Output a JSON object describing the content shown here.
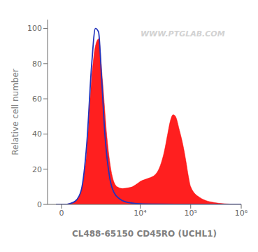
{
  "chart_data": {
    "type": "area",
    "xlabel": "CL488-65150 CD45RO (UCHL1)",
    "ylabel": "Relative cell number",
    "annotations": [
      "WWW.PTGLAB.COM"
    ],
    "log": "x",
    "series": [
      {
        "type": "area",
        "color": "#ff0000",
        "x": [
          -200,
          0,
          100,
          300,
          500,
          700,
          900,
          1100,
          1300,
          1500,
          1800,
          2200,
          2800,
          3500,
          4500,
          6000,
          7000,
          8000,
          9000,
          10000,
          12000,
          15000,
          20000,
          25000,
          30000,
          35000,
          40000,
          45000,
          50000,
          60000,
          70000,
          80000,
          90000,
          100000,
          150000,
          300000,
          600000,
          1000000
        ],
        "values": [
          0,
          0,
          0,
          0.5,
          2,
          8,
          30,
          72,
          90,
          94,
          70,
          38,
          16,
          10,
          9,
          9.5,
          10,
          11,
          12,
          13,
          14,
          15,
          17,
          22,
          30,
          40,
          48,
          51,
          50,
          42,
          34,
          25,
          16,
          10,
          4,
          1,
          0.2,
          0
        ]
      },
      {
        "type": "line",
        "color": "#2233bb",
        "x": [
          -200,
          0,
          100,
          300,
          500,
          700,
          900,
          1100,
          1300,
          1500,
          1700,
          2000,
          2500,
          3000,
          4000,
          6000,
          10000,
          20000,
          50000,
          100000,
          1000000
        ],
        "values": [
          0,
          0,
          0,
          0.5,
          2,
          8,
          35,
          80,
          100,
          98,
          75,
          40,
          15,
          7,
          3,
          1,
          0.3,
          0.1,
          0,
          0,
          0
        ]
      }
    ],
    "xlim": [
      -500,
      1000000
    ],
    "xticks": [
      0,
      {
        "value": 10000,
        "label": "10⁴"
      },
      {
        "value": 100000,
        "label": "10⁵"
      },
      {
        "value": 1000000,
        "label": "10⁶"
      }
    ],
    "ylim": [
      0,
      105
    ],
    "yticks": [
      0,
      20,
      40,
      60,
      80,
      100
    ]
  }
}
